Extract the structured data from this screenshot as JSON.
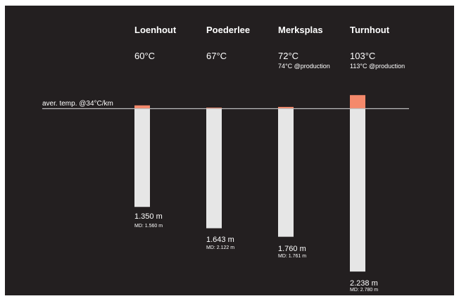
{
  "chart_data": {
    "type": "bar",
    "title": "",
    "reference_line": {
      "label": "aver. temp. @34°C/km",
      "gradient_c_per_km": 34
    },
    "categories": [
      "Loenhout",
      "Poederlee",
      "Merksplas",
      "Turnhout"
    ],
    "temperatures": [
      "60°C",
      "67°C",
      "72°C",
      "103°C"
    ],
    "production_temperatures": [
      "",
      "",
      "74°C @production",
      "113°C @production"
    ],
    "depth_labels": [
      "1.350 m",
      "1.643 m",
      "1.760 m",
      "2.238 m"
    ],
    "md_labels": [
      "MD: 1.560 m",
      "MD: 2.122 m",
      "MD: 1.761 m",
      "MD: 2.780 m"
    ],
    "depth_m": [
      1350,
      1643,
      1760,
      2238
    ],
    "temperature_c": [
      60,
      67,
      72,
      103
    ],
    "colors": {
      "background": "#231f20",
      "bar": "#e6e6e6",
      "excess": "#f4896b",
      "reference_line": "#bdbdbd",
      "text": "#ffffff"
    }
  }
}
